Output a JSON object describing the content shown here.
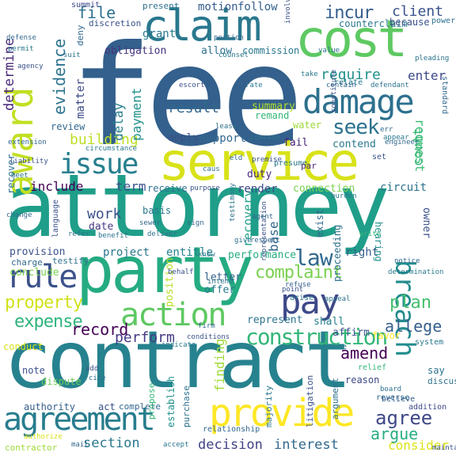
{
  "cloud": {
    "words": [
      {
        "text": "fee",
        "color": "#33608c"
      },
      {
        "text": "attorney",
        "color": "#1f9e89"
      },
      {
        "text": "contract",
        "color": "#26828e"
      },
      {
        "text": "party",
        "color": "#25ab82"
      },
      {
        "text": "service",
        "color": "#d8e219"
      },
      {
        "text": "cost",
        "color": "#5ec962"
      },
      {
        "text": "claim",
        "color": "#2a788e"
      },
      {
        "text": "award",
        "color": "#c2df23"
      },
      {
        "text": "damage",
        "color": "#2d708e"
      },
      {
        "text": "pay",
        "color": "#3e4989"
      },
      {
        "text": "provide",
        "color": "#fde725"
      },
      {
        "text": "action",
        "color": "#5ec962"
      },
      {
        "text": "agreement",
        "color": "#287d8e"
      },
      {
        "text": "issue",
        "color": "#277f8e"
      },
      {
        "text": "rule",
        "color": "#3b528b"
      },
      {
        "text": "construction",
        "color": "#35b779"
      },
      {
        "text": "law",
        "color": "#31688e"
      },
      {
        "text": "breach",
        "color": "#228c8d"
      },
      {
        "text": "seek",
        "color": "#2c728e"
      },
      {
        "text": "incur",
        "color": "#355f8d"
      },
      {
        "text": "require",
        "color": "#21918c"
      },
      {
        "text": "expense",
        "color": "#2fb47c"
      },
      {
        "text": "complaint",
        "color": "#7ad151"
      },
      {
        "text": "property",
        "color": "#d2e21b"
      },
      {
        "text": "agree",
        "color": "#3f4788"
      },
      {
        "text": "consider",
        "color": "#dde318"
      },
      {
        "text": "record",
        "color": "#440154"
      },
      {
        "text": "evidence",
        "color": "#2c738e"
      },
      {
        "text": "determine",
        "color": "#482878"
      },
      {
        "text": "client",
        "color": "#3b528b"
      },
      {
        "text": "building",
        "color": "#bddf26"
      },
      {
        "text": "plan",
        "color": "#44bf70"
      },
      {
        "text": "file",
        "color": "#2c718e"
      },
      {
        "text": "allege",
        "color": "#355f8d"
      },
      {
        "text": "work",
        "color": "#3b528b"
      },
      {
        "text": "perform",
        "color": "#443983"
      },
      {
        "text": "finding",
        "color": "#a0da39"
      },
      {
        "text": "result",
        "color": "#31688e"
      },
      {
        "text": "argue",
        "color": "#27ad81"
      },
      {
        "text": "amend",
        "color": "#440154"
      },
      {
        "text": "request",
        "color": "#3dbc74"
      },
      {
        "text": "delay",
        "color": "#277f8e"
      },
      {
        "text": "payment",
        "color": "#21918c"
      },
      {
        "text": "decision",
        "color": "#414487"
      },
      {
        "text": "interest",
        "color": "#31688e"
      },
      {
        "text": "include",
        "color": "#440154"
      },
      {
        "text": "term",
        "color": "#3b528b"
      },
      {
        "text": "section",
        "color": "#2a788e"
      },
      {
        "text": "base",
        "color": "#31688e"
      },
      {
        "text": "recovery",
        "color": "#1f9e89"
      },
      {
        "text": "count",
        "color": "#35b779"
      },
      {
        "text": "enter",
        "color": "#3e4989"
      },
      {
        "text": "motion",
        "color": "#365c8d"
      },
      {
        "text": "follow",
        "color": "#34618d"
      },
      {
        "text": "grant",
        "color": "#2a788e"
      },
      {
        "text": "matter",
        "color": "#3e4a89"
      },
      {
        "text": "obligation",
        "color": "#46337e"
      },
      {
        "text": "allow",
        "color": "#2d708e"
      },
      {
        "text": "commission",
        "color": "#29798e"
      },
      {
        "text": "summary",
        "color": "#b5de2b"
      },
      {
        "text": "remand",
        "color": "#35b779"
      },
      {
        "text": "support",
        "color": "#31688e"
      },
      {
        "text": "apply",
        "color": "#3b528b"
      },
      {
        "text": "fail",
        "color": "#482576"
      },
      {
        "text": "contend",
        "color": "#2a788e"
      },
      {
        "text": "render",
        "color": "#3e4989"
      },
      {
        "text": "duty",
        "color": "#482878"
      },
      {
        "text": "connection",
        "color": "#7ad151"
      },
      {
        "text": "circuit",
        "color": "#2c728e"
      },
      {
        "text": "owner",
        "color": "#3b528b"
      },
      {
        "text": "project",
        "color": "#2a788e"
      },
      {
        "text": "entitle",
        "color": "#26828e"
      },
      {
        "text": "provision",
        "color": "#3b528b"
      },
      {
        "text": "right",
        "color": "#355f8d"
      },
      {
        "text": "hearing",
        "color": "#21918c"
      },
      {
        "text": "charge",
        "color": "#31688e"
      },
      {
        "text": "testify",
        "color": "#2d708e"
      },
      {
        "text": "conclude",
        "color": "#7ad151"
      },
      {
        "text": "position",
        "color": "#b8de29"
      },
      {
        "text": "offer",
        "color": "#2a788e"
      },
      {
        "text": "letter",
        "color": "#34618d"
      },
      {
        "text": "performance",
        "color": "#27ad81"
      },
      {
        "text": "exist",
        "color": "#31688e"
      },
      {
        "text": "proceeding",
        "color": "#2d708e"
      },
      {
        "text": "affirm",
        "color": "#3b528b"
      },
      {
        "text": "favor",
        "color": "#fde725"
      },
      {
        "text": "represent",
        "color": "#2c738e"
      },
      {
        "text": "shall",
        "color": "#26828e"
      },
      {
        "text": "receive",
        "color": "#2c728e"
      },
      {
        "text": "basis",
        "color": "#2a788e"
      },
      {
        "text": "date",
        "color": "#443983"
      },
      {
        "text": "review",
        "color": "#31688e"
      },
      {
        "text": "recover",
        "color": "#2c728e"
      },
      {
        "text": "building",
        "color": "#bddf26"
      },
      {
        "text": "water",
        "color": "#a0da39"
      },
      {
        "text": "conduct",
        "color": "#d8e219"
      },
      {
        "text": "note",
        "color": "#3b528b"
      },
      {
        "text": "dispute",
        "color": "#6ece58"
      },
      {
        "text": "authority",
        "color": "#355f8d"
      },
      {
        "text": "act",
        "color": "#3b528b"
      },
      {
        "text": "complete",
        "color": "#31688e"
      },
      {
        "text": "establish",
        "color": "#21918c"
      },
      {
        "text": "purchase",
        "color": "#2c728e"
      },
      {
        "text": "propose",
        "color": "#35b779"
      },
      {
        "text": "majority",
        "color": "#2a788e"
      },
      {
        "text": "litigation",
        "color": "#3b528b"
      },
      {
        "text": "argument",
        "color": "#2d708e"
      },
      {
        "text": "reason",
        "color": "#3e4989"
      },
      {
        "text": "say",
        "color": "#2c728e"
      },
      {
        "text": "discuss",
        "color": "#2c718e"
      },
      {
        "text": "reverse",
        "color": "#31688e"
      },
      {
        "text": "contractor",
        "color": "#a0da39"
      },
      {
        "text": "relationship",
        "color": "#31688e"
      },
      {
        "text": "believe",
        "color": "#355f8d"
      },
      {
        "text": "system",
        "color": "#2a788e"
      },
      {
        "text": "addition",
        "color": "#3e4989"
      },
      {
        "text": "practice",
        "color": "#26828e"
      },
      {
        "text": "relief",
        "color": "#35b779"
      },
      {
        "text": "standard",
        "color": "#31688e"
      },
      {
        "text": "counterclaim",
        "color": "#2a788e"
      },
      {
        "text": "because",
        "color": "#3b528b"
      },
      {
        "text": "presume",
        "color": "#2a788e"
      },
      {
        "text": "present",
        "color": "#2d708e"
      },
      {
        "text": "discretion",
        "color": "#3b528b"
      },
      {
        "text": "deny",
        "color": "#31688e"
      },
      {
        "text": "summit",
        "color": "#3e4989"
      },
      {
        "text": "power",
        "color": "#2c728e"
      },
      {
        "text": "extension",
        "color": "#31688e"
      },
      {
        "text": "circumstance",
        "color": "#2a788e"
      },
      {
        "text": "language",
        "color": "#3b528b"
      },
      {
        "text": "benefit",
        "color": "#2c728e"
      },
      {
        "text": "deliver",
        "color": "#2d708e"
      },
      {
        "text": "sign",
        "color": "#31688e"
      },
      {
        "text": "arise",
        "color": "#2a788e"
      },
      {
        "text": "point",
        "color": "#3b528b"
      },
      {
        "text": "refuse",
        "color": "#355f8d"
      },
      {
        "text": "appeal",
        "color": "#2c728e"
      },
      {
        "text": "firm",
        "color": "#31688e"
      },
      {
        "text": "indicate",
        "color": "#2a788e"
      },
      {
        "text": "add",
        "color": "#3b528b"
      },
      {
        "text": "cite",
        "color": "#2c728e"
      },
      {
        "text": "authorize",
        "color": "#d8e219"
      },
      {
        "text": "mail",
        "color": "#31688e"
      },
      {
        "text": "accept",
        "color": "#2a788e"
      },
      {
        "text": "maintain",
        "color": "#3b528b"
      },
      {
        "text": "board",
        "color": "#2c728e"
      },
      {
        "text": "respect",
        "color": "#31688e"
      },
      {
        "text": "relate",
        "color": "#2a788e"
      },
      {
        "text": "constitute",
        "color": "#3b528b"
      },
      {
        "text": "defendant",
        "color": "#2c728e"
      },
      {
        "text": "engineer",
        "color": "#31688e"
      },
      {
        "text": "concern",
        "color": "#2a788e"
      },
      {
        "text": "premise",
        "color": "#3b528b"
      },
      {
        "text": "testimony",
        "color": "#2c728e"
      },
      {
        "text": "change",
        "color": "#31688e"
      },
      {
        "text": "burden",
        "color": "#2a788e"
      },
      {
        "text": "representation",
        "color": "#3b528b"
      },
      {
        "text": "give",
        "color": "#2c728e"
      },
      {
        "text": "agent",
        "color": "#31688e"
      },
      {
        "text": "know",
        "color": "#2a788e"
      },
      {
        "text": "behalf",
        "color": "#3b528b"
      },
      {
        "text": "intend",
        "color": "#2c728e"
      },
      {
        "text": "write",
        "color": "#35b779"
      },
      {
        "text": "notice",
        "color": "#31688e"
      },
      {
        "text": "rate",
        "color": "#2a788e"
      },
      {
        "text": "escort",
        "color": "#3b528b"
      },
      {
        "text": "lease",
        "color": "#2c728e"
      },
      {
        "text": "err",
        "color": "#31688e"
      },
      {
        "text": "appear",
        "color": "#2a788e"
      },
      {
        "text": "set",
        "color": "#3b528b"
      },
      {
        "text": "par",
        "color": "#482878"
      },
      {
        "text": "value",
        "color": "#2c728e"
      },
      {
        "text": "defense",
        "color": "#31688e"
      },
      {
        "text": "permit",
        "color": "#2a788e"
      },
      {
        "text": "agency",
        "color": "#3b528b"
      },
      {
        "text": "suit",
        "color": "#2c728e"
      },
      {
        "text": "portion",
        "color": "#31688e"
      },
      {
        "text": "counsel",
        "color": "#2a788e"
      },
      {
        "text": "involve",
        "color": "#3b528b"
      },
      {
        "text": "pleading",
        "color": "#2c728e"
      },
      {
        "text": "contain",
        "color": "#31688e"
      },
      {
        "text": "take",
        "color": "#2a788e"
      },
      {
        "text": "purpose",
        "color": "#3b528b"
      },
      {
        "text": "caus",
        "color": "#2c728e"
      },
      {
        "text": "eld",
        "color": "#31688e"
      },
      {
        "text": "meet",
        "color": "#2a788e"
      },
      {
        "text": "liability",
        "color": "#3b528b"
      },
      {
        "text": "refer",
        "color": "#2c728e"
      },
      {
        "text": "sewer",
        "color": "#31688e"
      },
      {
        "text": "determination",
        "color": "#2a788e"
      },
      {
        "text": "conditions",
        "color": "#3b528b"
      }
    ]
  }
}
